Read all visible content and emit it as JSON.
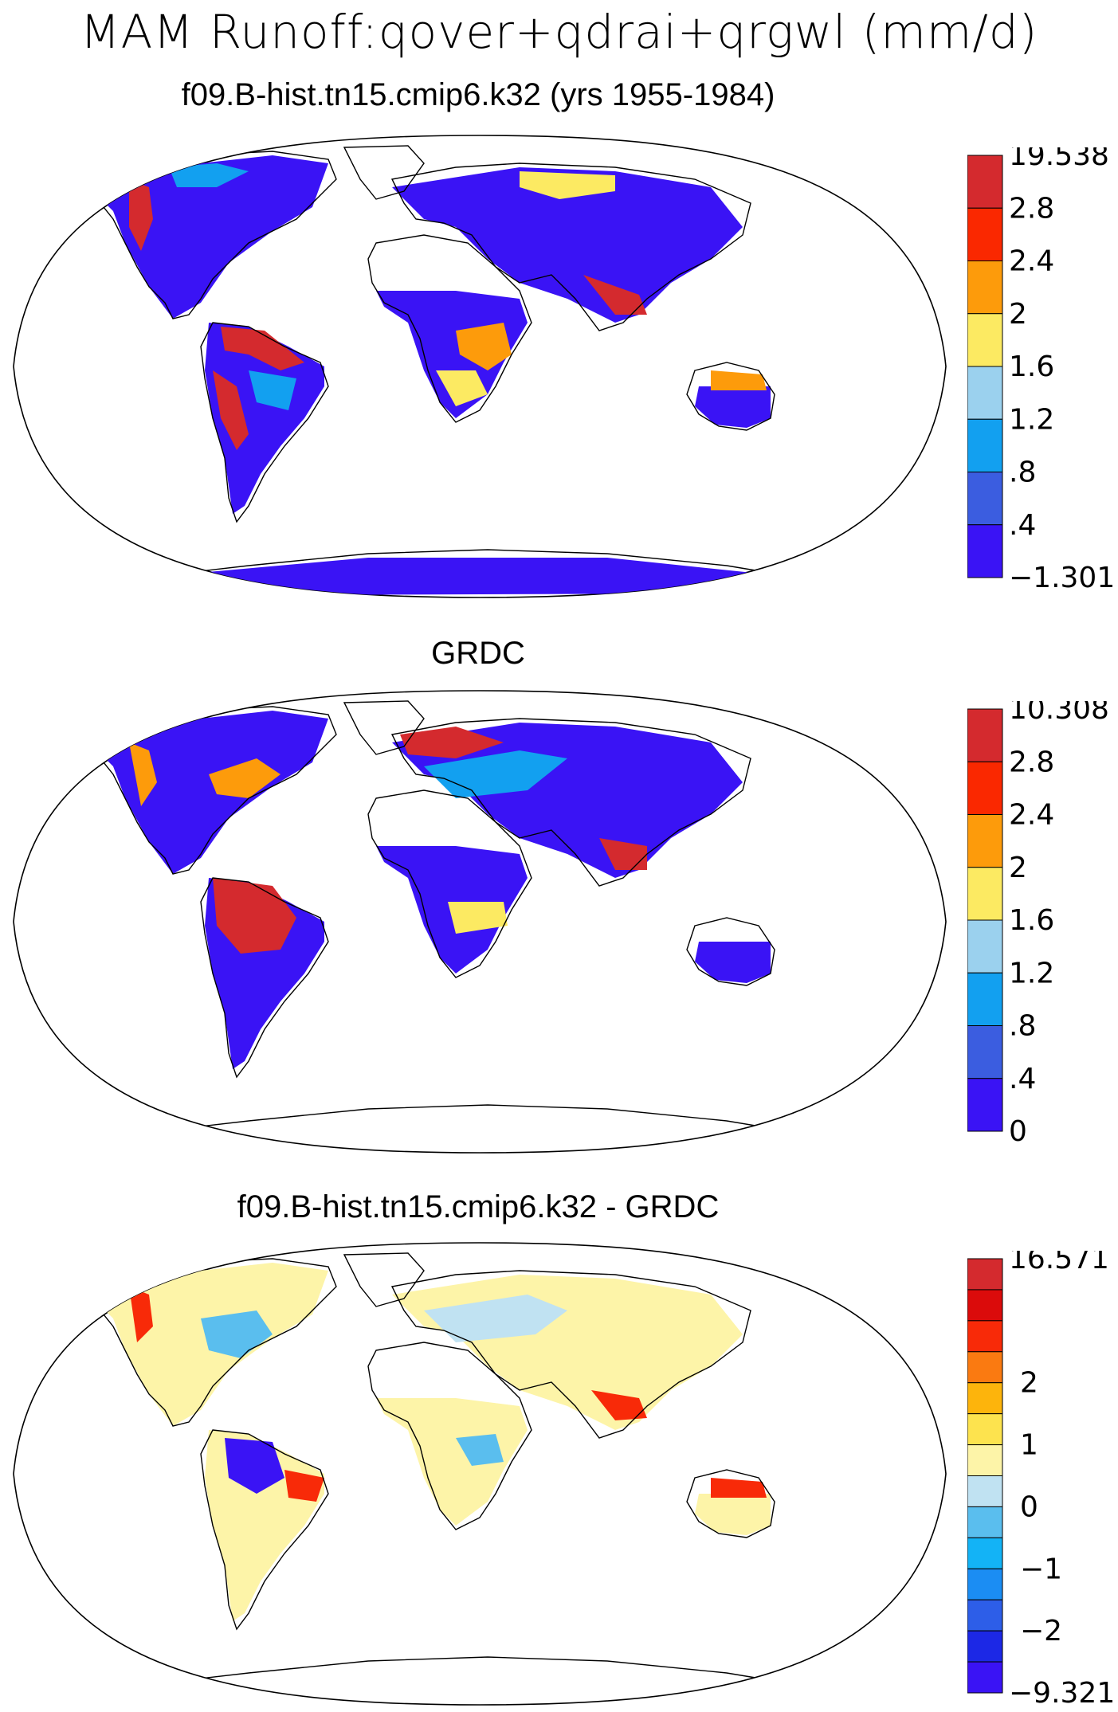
{
  "title": "MAM Runoff:qover+qdrai+qrgwl (mm/d)",
  "panels": [
    {
      "id": "model",
      "title": "f09.B-hist.tn15.cmip6.k32 (yrs 1955-1984)",
      "colorbar": {
        "colors": [
          "#3a13f5",
          "#3b5de0",
          "#12a0f0",
          "#9bd1ee",
          "#fcea62",
          "#fd9b0b",
          "#fa2800",
          "#d42a2e"
        ],
        "labels": [
          "−1.301",
          ".4",
          ".8",
          "1.2",
          "1.6",
          "2",
          "2.4",
          "2.8",
          "19.538"
        ]
      }
    },
    {
      "id": "obs",
      "title": "GRDC",
      "colorbar": {
        "colors": [
          "#3a13f5",
          "#3b5de0",
          "#12a0f0",
          "#9bd1ee",
          "#fcea62",
          "#fd9b0b",
          "#fa2800",
          "#d42a2e"
        ],
        "labels": [
          "0",
          ".4",
          ".8",
          "1.2",
          "1.6",
          "2",
          "2.4",
          "2.8",
          "10.308"
        ]
      }
    },
    {
      "id": "diff",
      "title": "f09.B-hist.tn15.cmip6.k32 - GRDC",
      "colorbar": {
        "colors": [
          "#3a13f5",
          "#1c28e6",
          "#2d5ee8",
          "#1b8df3",
          "#13b3f6",
          "#5abeee",
          "#c0e2f2",
          "#fdf4a8",
          "#fde34e",
          "#fdb40c",
          "#fa7a11",
          "#f82a08",
          "#db0b0b",
          "#d42a2e"
        ],
        "labels": [
          "−9.321",
          "",
          "−2",
          "",
          "−1",
          "",
          "0",
          "",
          "1",
          "",
          "2",
          "",
          "",
          "",
          "16.571"
        ],
        "label_every_other_center": [
          "−2",
          "−1",
          "0",
          "1",
          "2"
        ]
      }
    }
  ]
}
